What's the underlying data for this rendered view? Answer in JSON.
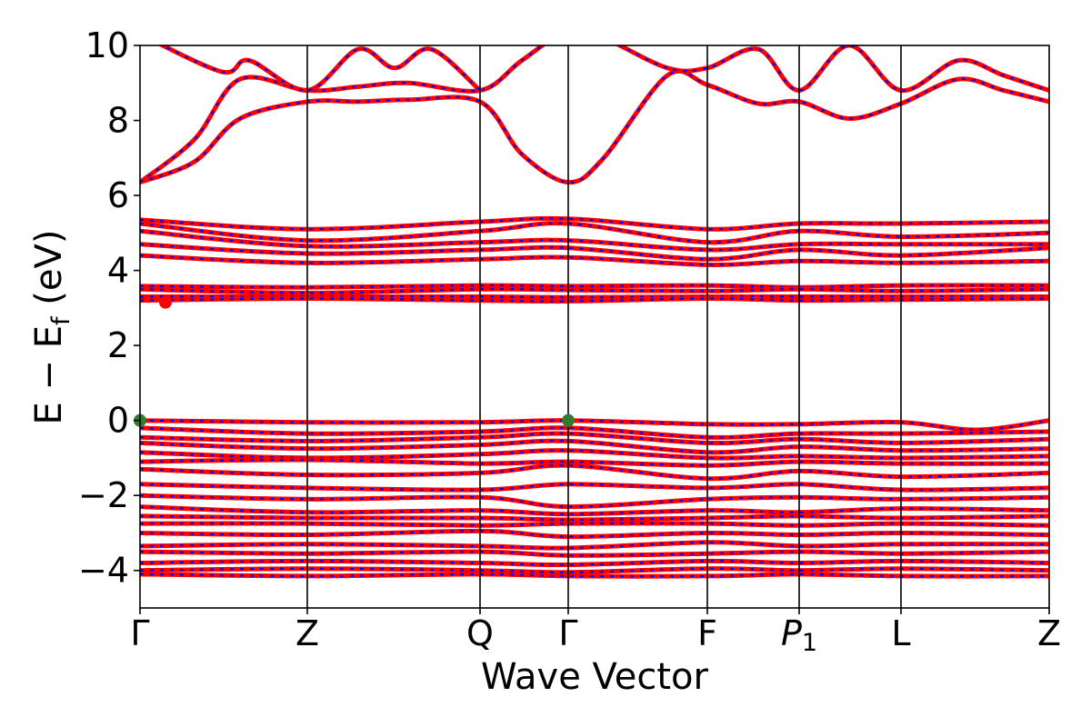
{
  "chart_data": {
    "type": "line",
    "title": "",
    "xlabel": "Wave Vector",
    "ylabel": "E − E",
    "ylabel_subscript": "f",
    "ylabel_unit": " (eV)",
    "ylim": [
      -5,
      10
    ],
    "yticks": [
      {
        "value": 10,
        "label": "10"
      },
      {
        "value": 8,
        "label": "8"
      },
      {
        "value": 6,
        "label": "6"
      },
      {
        "value": 4,
        "label": "4"
      },
      {
        "value": 2,
        "label": "2"
      },
      {
        "value": 0,
        "label": "0"
      },
      {
        "value": -2,
        "label": "−2"
      },
      {
        "value": -4,
        "label": "−4"
      }
    ],
    "kpath": [
      {
        "label": "Γ",
        "x": 0.0
      },
      {
        "label": "Z",
        "x": 1.84
      },
      {
        "label": "Q",
        "x": 3.74
      },
      {
        "label": "Γ",
        "x": 4.71
      },
      {
        "label": "F",
        "x": 6.24
      },
      {
        "label": "P",
        "label_subscript": "1",
        "x": 7.25
      },
      {
        "label": "L",
        "x": 8.37
      },
      {
        "label": "Z",
        "x": 10.0
      }
    ],
    "xlim": [
      0,
      10
    ],
    "grid": false,
    "legend": "none",
    "colors": {
      "band_main": "#ff0000",
      "band_dash": "#0000ff",
      "vbm_marker": "#2e7d32",
      "cbm_marker": "#ff0000",
      "axes": "#000000"
    },
    "bands": [
      {
        "group": "conduction",
        "x": [
          0,
          0.6,
          1.1,
          1.84,
          2.4,
          2.95,
          3.74,
          4.2,
          4.71,
          5.1,
          5.8,
          6.24,
          6.8,
          7.25,
          7.8,
          8.37,
          9.0,
          9.5,
          10
        ],
        "y": [
          6.35,
          6.9,
          8.05,
          8.5,
          8.5,
          8.55,
          8.5,
          7.1,
          6.35,
          7.0,
          9.2,
          8.95,
          8.45,
          8.5,
          8.05,
          8.45,
          9.1,
          8.8,
          8.5
        ]
      },
      {
        "group": "conduction",
        "x": [
          0,
          0.6,
          1.1,
          1.84,
          2.4,
          2.95,
          3.74,
          4.2,
          4.71,
          5.1,
          5.8,
          6.24,
          6.8,
          7.25,
          7.8,
          8.37,
          9.0,
          9.5,
          10
        ],
        "y": [
          6.35,
          7.5,
          9.1,
          8.8,
          8.9,
          9.0,
          8.8,
          9.6,
          10.4,
          10.2,
          9.4,
          9.4,
          9.9,
          8.8,
          10.0,
          8.8,
          9.6,
          9.2,
          8.8
        ]
      },
      {
        "group": "conduction",
        "x": [
          0,
          0.9,
          1.2,
          1.84,
          2.4,
          2.8,
          3.2,
          3.74
        ],
        "y": [
          10.3,
          9.3,
          9.6,
          8.8,
          9.9,
          9.4,
          9.9,
          8.8
        ]
      },
      {
        "group": "upper-valence",
        "x": [
          0,
          1.84,
          3.74,
          4.71,
          6.24,
          7.25,
          8.37,
          10
        ],
        "y": [
          5.35,
          5.1,
          5.3,
          5.38,
          5.1,
          5.25,
          5.25,
          5.3
        ]
      },
      {
        "group": "upper-valence",
        "x": [
          0,
          1.84,
          3.74,
          4.71,
          6.24,
          7.25,
          8.37,
          10
        ],
        "y": [
          5.25,
          4.8,
          5.05,
          5.25,
          4.75,
          5.05,
          4.9,
          5.0
        ]
      },
      {
        "group": "upper-valence",
        "x": [
          0,
          1.84,
          3.74,
          4.71,
          6.24,
          7.25,
          8.37,
          10
        ],
        "y": [
          5.05,
          4.65,
          4.75,
          4.8,
          4.55,
          4.7,
          4.7,
          4.7
        ]
      },
      {
        "group": "upper-valence",
        "x": [
          0,
          1.84,
          3.74,
          4.71,
          6.24,
          7.25,
          8.37,
          10
        ],
        "y": [
          4.7,
          4.45,
          4.55,
          4.6,
          4.3,
          4.55,
          4.4,
          4.6
        ]
      },
      {
        "group": "upper-valence",
        "x": [
          0,
          1.84,
          3.74,
          4.71,
          6.24,
          7.25,
          8.37,
          10
        ],
        "y": [
          4.4,
          4.2,
          4.3,
          4.35,
          4.15,
          4.25,
          4.2,
          4.25
        ]
      },
      {
        "group": "upper-valence",
        "x": [
          0,
          1.84,
          3.74,
          4.71,
          6.24,
          7.25,
          8.37,
          10
        ],
        "y": [
          3.58,
          3.55,
          3.6,
          3.58,
          3.6,
          3.55,
          3.6,
          3.6
        ]
      },
      {
        "group": "upper-valence",
        "x": [
          0,
          1.84,
          3.74,
          4.71,
          6.24,
          7.25,
          8.37,
          10
        ],
        "y": [
          3.5,
          3.4,
          3.5,
          3.48,
          3.45,
          3.5,
          3.45,
          3.5
        ]
      },
      {
        "group": "upper-valence",
        "x": [
          0,
          1.84,
          3.74,
          4.71,
          6.24,
          7.25,
          8.37,
          10
        ],
        "y": [
          3.3,
          3.3,
          3.3,
          3.28,
          3.3,
          3.3,
          3.3,
          3.3
        ]
      },
      {
        "group": "upper-valence",
        "x": [
          0,
          1.84,
          3.74,
          4.71,
          6.24,
          7.25,
          8.37,
          10
        ],
        "y": [
          3.2,
          3.25,
          3.2,
          3.18,
          3.25,
          3.2,
          3.22,
          3.25
        ]
      },
      {
        "group": "valence",
        "x": [
          0,
          1.84,
          3.74,
          4.71,
          6.24,
          7.25,
          8.37,
          9.2,
          10
        ],
        "y": [
          0.0,
          -0.05,
          -0.05,
          0.0,
          -0.1,
          -0.1,
          -0.05,
          -0.25,
          0.0
        ]
      },
      {
        "group": "valence",
        "x": [
          0,
          1.84,
          3.74,
          4.71,
          6.24,
          7.25,
          8.37,
          10
        ],
        "y": [
          -0.2,
          -0.35,
          -0.3,
          -0.2,
          -0.45,
          -0.35,
          -0.35,
          -0.3
        ]
      },
      {
        "group": "valence",
        "x": [
          0,
          1.84,
          3.74,
          4.71,
          6.24,
          7.25,
          8.37,
          10
        ],
        "y": [
          -0.45,
          -0.55,
          -0.45,
          -0.35,
          -0.6,
          -0.5,
          -0.6,
          -0.5
        ]
      },
      {
        "group": "valence",
        "x": [
          0,
          1.84,
          3.74,
          4.71,
          6.24,
          7.25,
          8.37,
          10
        ],
        "y": [
          -0.6,
          -0.75,
          -0.65,
          -0.55,
          -0.85,
          -0.7,
          -0.8,
          -0.75
        ]
      },
      {
        "group": "valence",
        "x": [
          0,
          1.84,
          3.74,
          4.71,
          6.24,
          7.25,
          8.37,
          10
        ],
        "y": [
          -0.85,
          -1.0,
          -0.9,
          -0.8,
          -1.0,
          -0.95,
          -1.0,
          -0.95
        ]
      },
      {
        "group": "valence",
        "x": [
          0,
          1.84,
          3.74,
          4.71,
          6.24,
          7.25,
          8.37,
          10
        ],
        "y": [
          -1.1,
          -1.05,
          -1.15,
          -1.1,
          -1.2,
          -1.1,
          -1.15,
          -1.15
        ]
      },
      {
        "group": "valence",
        "x": [
          0,
          1.84,
          3.74,
          4.71,
          6.24,
          7.25,
          8.37,
          10
        ],
        "y": [
          -1.3,
          -1.45,
          -1.4,
          -1.2,
          -1.55,
          -1.35,
          -1.5,
          -1.4
        ]
      },
      {
        "group": "valence",
        "x": [
          0,
          1.84,
          3.74,
          4.71,
          6.24,
          7.25,
          8.37,
          10
        ],
        "y": [
          -1.7,
          -1.8,
          -1.85,
          -1.7,
          -1.8,
          -1.7,
          -1.85,
          -1.8
        ]
      },
      {
        "group": "valence",
        "x": [
          0,
          1.84,
          3.74,
          4.71,
          6.24,
          7.25,
          8.37,
          10
        ],
        "y": [
          -2.0,
          -2.1,
          -2.05,
          -2.3,
          -2.1,
          -2.05,
          -2.1,
          -2.05
        ]
      },
      {
        "group": "valence",
        "x": [
          0,
          1.84,
          3.74,
          4.71,
          6.24,
          7.25,
          8.37,
          10
        ],
        "y": [
          -2.3,
          -2.45,
          -2.4,
          -2.5,
          -2.4,
          -2.45,
          -2.35,
          -2.4
        ]
      },
      {
        "group": "valence",
        "x": [
          0,
          1.84,
          3.74,
          4.71,
          6.24,
          7.25,
          8.37,
          10
        ],
        "y": [
          -2.55,
          -2.6,
          -2.6,
          -2.65,
          -2.6,
          -2.55,
          -2.6,
          -2.55
        ]
      },
      {
        "group": "valence",
        "x": [
          0,
          1.84,
          3.74,
          4.71,
          6.24,
          7.25,
          8.37,
          10
        ],
        "y": [
          -2.75,
          -2.75,
          -2.8,
          -2.75,
          -2.75,
          -2.8,
          -2.75,
          -2.8
        ]
      },
      {
        "group": "valence",
        "x": [
          0,
          1.84,
          3.74,
          4.71,
          6.24,
          7.25,
          8.37,
          10
        ],
        "y": [
          -3.0,
          -3.05,
          -2.95,
          -3.1,
          -3.0,
          -3.05,
          -3.0,
          -3.05
        ]
      },
      {
        "group": "valence",
        "x": [
          0,
          1.84,
          3.74,
          4.71,
          6.24,
          7.25,
          8.37,
          10
        ],
        "y": [
          -3.35,
          -3.3,
          -3.35,
          -3.4,
          -3.25,
          -3.35,
          -3.3,
          -3.3
        ]
      },
      {
        "group": "valence",
        "x": [
          0,
          1.84,
          3.74,
          4.71,
          6.24,
          7.25,
          8.37,
          10
        ],
        "y": [
          -3.5,
          -3.55,
          -3.5,
          -3.6,
          -3.55,
          -3.5,
          -3.55,
          -3.5
        ]
      },
      {
        "group": "valence",
        "x": [
          0,
          1.84,
          3.74,
          4.71,
          6.24,
          7.25,
          8.37,
          10
        ],
        "y": [
          -3.8,
          -3.75,
          -3.8,
          -3.85,
          -3.75,
          -3.8,
          -3.75,
          -3.8
        ]
      },
      {
        "group": "valence",
        "x": [
          0,
          1.84,
          3.74,
          4.71,
          6.24,
          7.25,
          8.37,
          10
        ],
        "y": [
          -4.0,
          -3.95,
          -4.0,
          -4.05,
          -3.95,
          -4.0,
          -3.95,
          -4.0
        ]
      },
      {
        "group": "valence",
        "x": [
          0,
          1.84,
          3.74,
          4.71,
          6.24,
          7.25,
          8.37,
          10
        ],
        "y": [
          -4.1,
          -4.15,
          -4.1,
          -4.15,
          -4.15,
          -4.1,
          -4.15,
          -4.15
        ]
      }
    ],
    "markers": [
      {
        "kind": "vbm",
        "x": 0.0,
        "y": 0.0,
        "color": "#2e7d32"
      },
      {
        "kind": "vbm",
        "x": 4.71,
        "y": 0.0,
        "color": "#2e7d32"
      },
      {
        "kind": "cbm",
        "x": 0.28,
        "y": 3.15,
        "color": "#ff0000"
      }
    ]
  }
}
